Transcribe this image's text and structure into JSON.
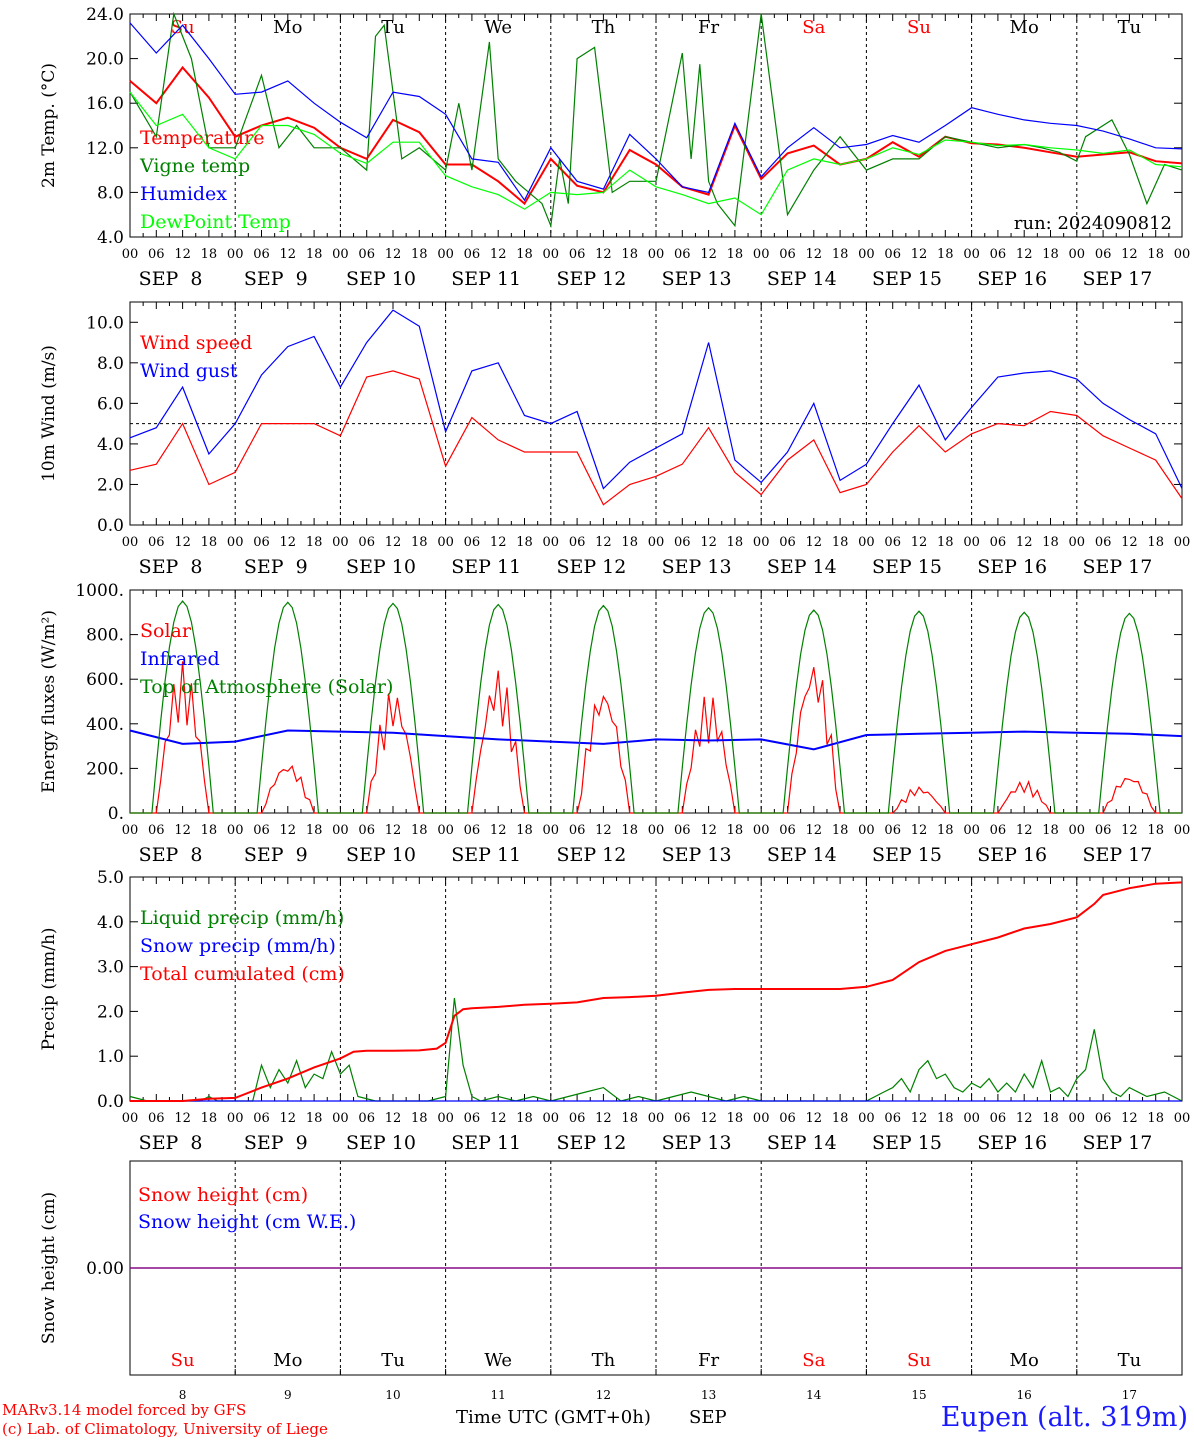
{
  "meta": {
    "run_label": "run: 2024090812",
    "footer_line1": "MARv3.14 model forced by GFS",
    "footer_line2": "(c) Lab. of Climatology, University of Liege",
    "time_axis_label": "Time UTC (GMT+0h)",
    "month_label": "SEP",
    "station": "Eupen (alt. 319m)",
    "colors": {
      "red": "#ff0000",
      "green": "#008000",
      "blue": "#0000ff",
      "lightgreen": "#00ff00",
      "purple": "#800080",
      "weekend": "#ff0000",
      "weekday": "#000000"
    }
  },
  "days": [
    {
      "abbr": "Su",
      "date_label": "SEP  8",
      "day_num": "8",
      "weekend": true
    },
    {
      "abbr": "Mo",
      "date_label": "SEP  9",
      "day_num": "9",
      "weekend": false
    },
    {
      "abbr": "Tu",
      "date_label": "SEP 10",
      "day_num": "10",
      "weekend": false
    },
    {
      "abbr": "We",
      "date_label": "SEP 11",
      "day_num": "11",
      "weekend": false
    },
    {
      "abbr": "Th",
      "date_label": "SEP 12",
      "day_num": "12",
      "weekend": false
    },
    {
      "abbr": "Fr",
      "date_label": "SEP 13",
      "day_num": "13",
      "weekend": false
    },
    {
      "abbr": "Sa",
      "date_label": "SEP 14",
      "day_num": "14",
      "weekend": true
    },
    {
      "abbr": "Su",
      "date_label": "SEP 15",
      "day_num": "15",
      "weekend": true
    },
    {
      "abbr": "Mo",
      "date_label": "SEP 16",
      "day_num": "16",
      "weekend": false
    },
    {
      "abbr": "Tu",
      "date_label": "SEP 17",
      "day_num": "17",
      "weekend": false
    }
  ],
  "hour_ticks": [
    "00",
    "06",
    "12",
    "18"
  ],
  "chart_data": [
    {
      "type": "line",
      "ylabel": "2m Temp. (°C)",
      "ylim": [
        4,
        24
      ],
      "yticks": [
        "4.0",
        "8.0",
        "12.0",
        "16.0",
        "20.0",
        "24.0"
      ],
      "x_unit": "hours since SEP 8 00 UTC",
      "show_day_abbr": true,
      "series": [
        {
          "name": "Temperature",
          "color": "#ff0000",
          "x": [
            0,
            6,
            12,
            18,
            24,
            30,
            36,
            42,
            48,
            54,
            60,
            66,
            72,
            78,
            84,
            90,
            96,
            102,
            108,
            114,
            120,
            126,
            132,
            138,
            144,
            150,
            156,
            162,
            168,
            174,
            180,
            186,
            192,
            198,
            204,
            210,
            216,
            222,
            228,
            234,
            240
          ],
          "values": [
            18,
            16,
            19.2,
            16.5,
            13,
            14,
            14.7,
            13.8,
            12,
            11,
            14.5,
            13.4,
            10.5,
            10.5,
            9,
            7,
            11,
            8.6,
            8,
            11.8,
            10.5,
            8.5,
            7.8,
            14,
            9.2,
            11.5,
            12.2,
            10.5,
            11,
            12.5,
            11.2,
            13,
            12.4,
            12.3,
            12,
            11.6,
            11.2,
            11.4,
            11.6,
            10.8,
            10.6
          ]
        },
        {
          "name": "Vigne temp",
          "color": "#008000",
          "x": [
            0,
            6,
            10,
            14,
            18,
            24,
            30,
            34,
            38,
            42,
            48,
            54,
            56,
            58,
            62,
            66,
            72,
            75,
            78,
            82,
            84,
            88,
            94,
            96,
            98,
            100,
            102,
            106,
            110,
            114,
            120,
            126,
            128,
            130,
            132,
            134,
            138,
            144,
            150,
            156,
            162,
            168,
            174,
            180,
            186,
            192,
            198,
            204,
            208,
            212,
            216,
            218,
            224,
            228,
            232,
            236,
            240
          ],
          "values": [
            17,
            13,
            24,
            20,
            12,
            12,
            18.5,
            12,
            14,
            12,
            12,
            10,
            22,
            23,
            11,
            12,
            10,
            16,
            10,
            21.5,
            11,
            9,
            7,
            5,
            11,
            7,
            20,
            21,
            8,
            9,
            9,
            20.5,
            11,
            19.5,
            9,
            7,
            5,
            24,
            6,
            10,
            13,
            10,
            11,
            11,
            13,
            12.5,
            12,
            12.3,
            12,
            11.6,
            10.8,
            13,
            14.5,
            11.4,
            7,
            10.5,
            10
          ]
        },
        {
          "name": "Humidex",
          "color": "#0000ff",
          "x": [
            0,
            6,
            12,
            18,
            24,
            30,
            36,
            42,
            48,
            54,
            60,
            66,
            72,
            78,
            84,
            90,
            96,
            102,
            108,
            114,
            120,
            126,
            132,
            138,
            144,
            150,
            156,
            162,
            168,
            174,
            180,
            186,
            192,
            198,
            204,
            210,
            216,
            222,
            228,
            234,
            240
          ],
          "values": [
            23.2,
            20.5,
            23,
            20,
            16.8,
            17,
            18,
            16,
            14.3,
            12.9,
            17,
            16.6,
            15,
            11,
            10.7,
            7.3,
            12,
            9,
            8.3,
            13.2,
            11,
            8.5,
            8,
            14.2,
            9.4,
            12,
            13.8,
            12,
            12.3,
            13.1,
            12.5,
            14,
            15.6,
            15,
            14.5,
            14.2,
            14,
            13.5,
            12.8,
            12,
            11.9
          ]
        },
        {
          "name": "DewPoint Temp",
          "color": "#00ff00",
          "x": [
            0,
            6,
            12,
            18,
            24,
            30,
            36,
            42,
            48,
            54,
            60,
            66,
            72,
            78,
            84,
            90,
            96,
            102,
            108,
            114,
            120,
            126,
            132,
            138,
            144,
            150,
            156,
            162,
            168,
            174,
            180,
            186,
            192,
            198,
            204,
            210,
            216,
            222,
            228,
            234,
            240
          ],
          "values": [
            17,
            14,
            15,
            12,
            11,
            14,
            14,
            13.2,
            11.5,
            10.6,
            12.5,
            12.5,
            9.5,
            8.5,
            7.8,
            6.5,
            8,
            7.8,
            8,
            10,
            8.5,
            7.8,
            7,
            7.5,
            6,
            10,
            11,
            10.5,
            11,
            12,
            11.4,
            12.7,
            12.5,
            12.2,
            12.3,
            12,
            11.8,
            11.5,
            11.8,
            10.5,
            10.3
          ]
        }
      ]
    },
    {
      "type": "line",
      "ylabel": "10m Wind (m/s)",
      "ylim": [
        0,
        11
      ],
      "yticks": [
        "0.0",
        "2.0",
        "4.0",
        "6.0",
        "8.0",
        "10.0"
      ],
      "reference_line": 5,
      "series": [
        {
          "name": "Wind speed",
          "color": "#ff0000",
          "x": [
            0,
            6,
            12,
            18,
            24,
            30,
            36,
            42,
            48,
            54,
            60,
            66,
            72,
            78,
            84,
            90,
            96,
            102,
            108,
            114,
            120,
            126,
            132,
            138,
            144,
            150,
            156,
            162,
            168,
            174,
            180,
            186,
            192,
            198,
            204,
            210,
            216,
            222,
            228,
            234,
            240
          ],
          "values": [
            2.7,
            3,
            5,
            2,
            2.6,
            5,
            5,
            5,
            4.4,
            7.3,
            7.6,
            7.2,
            2.9,
            5.3,
            4.2,
            3.6,
            3.6,
            3.6,
            1,
            2,
            2.4,
            3,
            4.8,
            2.6,
            1.5,
            3.2,
            4.2,
            1.6,
            2,
            3.6,
            4.9,
            3.6,
            4.5,
            5,
            4.9,
            5.6,
            5.4,
            4.4,
            3.8,
            3.2,
            1.3
          ]
        },
        {
          "name": "Wind gust",
          "color": "#0000ff",
          "x": [
            0,
            6,
            12,
            18,
            24,
            30,
            36,
            42,
            48,
            54,
            60,
            66,
            72,
            78,
            84,
            90,
            96,
            102,
            108,
            114,
            120,
            126,
            132,
            138,
            144,
            150,
            156,
            162,
            168,
            174,
            180,
            186,
            192,
            198,
            204,
            210,
            216,
            222,
            228,
            234,
            240
          ],
          "values": [
            4.3,
            4.8,
            6.8,
            3.5,
            5,
            7.4,
            8.8,
            9.3,
            6.8,
            9,
            10.6,
            9.8,
            4.6,
            7.6,
            8,
            5.4,
            5,
            5.6,
            1.8,
            3.1,
            3.8,
            4.5,
            9,
            3.2,
            2.1,
            3.6,
            6,
            2.2,
            3,
            5,
            6.9,
            4.2,
            5.8,
            7.3,
            7.5,
            7.6,
            7.2,
            6,
            5.2,
            4.5,
            1.8
          ]
        }
      ]
    },
    {
      "type": "line",
      "ylabel": "Energy fluxes (W/m²)",
      "ylim": [
        0,
        1000
      ],
      "yticks": [
        "0.",
        "200.",
        "400.",
        "600.",
        "800.",
        "1000."
      ],
      "series": [
        {
          "name": "Solar",
          "color": "#ff0000",
          "daily_peaks": [
            680,
            230,
            560,
            650,
            580,
            540,
            700,
            120,
            145,
            175
          ]
        },
        {
          "name": "Infrared",
          "color": "#0000ff",
          "x": [
            0,
            12,
            24,
            36,
            48,
            60,
            72,
            84,
            96,
            108,
            120,
            132,
            144,
            156,
            168,
            180,
            192,
            204,
            216,
            228,
            240
          ],
          "values": [
            370,
            310,
            320,
            370,
            365,
            360,
            345,
            330,
            320,
            310,
            330,
            325,
            330,
            285,
            350,
            355,
            360,
            365,
            360,
            355,
            345
          ]
        },
        {
          "name": "Top of Atmosphere (Solar)",
          "color": "#008000",
          "daily_peaks": [
            950,
            945,
            940,
            935,
            930,
            920,
            910,
            905,
            900,
            895
          ]
        }
      ]
    },
    {
      "type": "line",
      "ylabel": "Precip (mm/h)",
      "ylim": [
        0,
        5
      ],
      "yticks": [
        "0.0",
        "1.0",
        "2.0",
        "3.0",
        "4.0",
        "5.0"
      ],
      "series": [
        {
          "name": "Liquid precip (mm/h)",
          "color": "#008000",
          "x": [
            0,
            4,
            8,
            12,
            16,
            18,
            20,
            24,
            28,
            30,
            32,
            34,
            36,
            38,
            40,
            42,
            44,
            46,
            48,
            50,
            52,
            56,
            60,
            64,
            68,
            72,
            74,
            76,
            78,
            80,
            84,
            88,
            92,
            96,
            100,
            104,
            108,
            112,
            116,
            120,
            124,
            128,
            132,
            136,
            140,
            144,
            150,
            156,
            162,
            168,
            172,
            174,
            176,
            178,
            180,
            182,
            184,
            186,
            188,
            190,
            192,
            194,
            196,
            198,
            200,
            202,
            204,
            206,
            208,
            210,
            212,
            214,
            216,
            218,
            220,
            222,
            224,
            226,
            228,
            232,
            236,
            240
          ],
          "values": [
            0.1,
            0,
            0,
            0,
            0,
            0.1,
            0,
            0,
            0,
            0.8,
            0.3,
            0.7,
            0.4,
            0.9,
            0.3,
            0.6,
            0.5,
            1.1,
            0.6,
            0.8,
            0.1,
            0,
            0,
            0,
            0,
            0.1,
            2.3,
            0.8,
            0.1,
            0,
            0.1,
            0,
            0.1,
            0,
            0.1,
            0.2,
            0.3,
            0,
            0.1,
            0,
            0.1,
            0.2,
            0.1,
            0,
            0.1,
            0,
            0,
            0,
            0,
            0,
            0.2,
            0.3,
            0.5,
            0.2,
            0.7,
            0.9,
            0.5,
            0.6,
            0.3,
            0.2,
            0.4,
            0.3,
            0.5,
            0.2,
            0.4,
            0.2,
            0.6,
            0.3,
            0.9,
            0.2,
            0.3,
            0.1,
            0.5,
            0.7,
            1.6,
            0.5,
            0.2,
            0.1,
            0.3,
            0.1,
            0.2,
            0
          ]
        },
        {
          "name": "Snow precip (mm/h)",
          "color": "#0000ff",
          "x": [
            0,
            240
          ],
          "values": [
            0,
            0
          ]
        },
        {
          "name": "Total cumulated (cm)",
          "color": "#ff0000",
          "x": [
            0,
            12,
            18,
            24,
            30,
            36,
            42,
            48,
            51,
            54,
            60,
            66,
            70,
            72,
            74,
            76,
            78,
            84,
            90,
            96,
            102,
            108,
            114,
            120,
            126,
            132,
            138,
            144,
            150,
            156,
            162,
            168,
            174,
            180,
            186,
            192,
            198,
            204,
            210,
            216,
            220,
            222,
            224,
            228,
            234,
            240
          ],
          "values": [
            0,
            0,
            0.05,
            0.07,
            0.3,
            0.5,
            0.75,
            0.95,
            1.1,
            1.12,
            1.12,
            1.13,
            1.17,
            1.3,
            1.9,
            2.05,
            2.07,
            2.1,
            2.15,
            2.17,
            2.2,
            2.3,
            2.32,
            2.35,
            2.42,
            2.48,
            2.5,
            2.5,
            2.5,
            2.5,
            2.5,
            2.55,
            2.7,
            3.1,
            3.35,
            3.5,
            3.65,
            3.85,
            3.95,
            4.1,
            4.4,
            4.6,
            4.65,
            4.75,
            4.85,
            4.88
          ]
        }
      ]
    },
    {
      "type": "line",
      "ylabel": "Snow height (cm)",
      "ylim": [
        -1,
        1
      ],
      "yticks": [
        "0.00"
      ],
      "series": [
        {
          "name": "Snow height (cm)",
          "color": "#ff0000",
          "x": [
            0,
            240
          ],
          "values": [
            0,
            0
          ]
        },
        {
          "name": "Snow height (cm W.E.)",
          "color": "#0000ff",
          "x": [
            0,
            240
          ],
          "values": [
            0,
            0
          ]
        }
      ]
    }
  ]
}
